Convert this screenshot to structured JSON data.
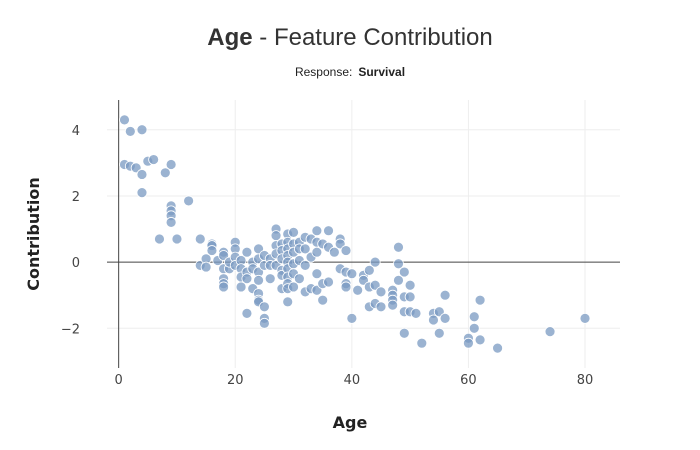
{
  "chart_data": {
    "type": "scatter",
    "title_bold": "Age",
    "title_rest": " - Feature Contribution",
    "subtitle_label": "Response:",
    "subtitle_value": "Survival",
    "xlabel": "Age",
    "ylabel": "Contribution",
    "xlim": [
      -2,
      86
    ],
    "ylim": [
      -3.2,
      4.9
    ],
    "x_ticks": [
      0,
      20,
      40,
      60,
      80
    ],
    "y_ticks": [
      -2,
      0,
      2,
      4
    ],
    "y_tick_labels": [
      "−2",
      "0",
      "2",
      "4"
    ],
    "grid": true,
    "color": "#7a99c2",
    "points": [
      [
        1,
        4.3
      ],
      [
        2,
        3.95
      ],
      [
        4,
        4.0
      ],
      [
        1,
        2.95
      ],
      [
        2,
        2.9
      ],
      [
        3,
        2.85
      ],
      [
        4,
        2.65
      ],
      [
        5,
        3.05
      ],
      [
        6,
        3.1
      ],
      [
        8,
        2.7
      ],
      [
        9,
        2.95
      ],
      [
        4,
        2.1
      ],
      [
        12,
        1.85
      ],
      [
        9,
        1.7
      ],
      [
        9,
        1.55
      ],
      [
        9,
        1.4
      ],
      [
        9,
        1.2
      ],
      [
        7,
        0.7
      ],
      [
        10,
        0.7
      ],
      [
        14,
        0.7
      ],
      [
        14,
        -0.1
      ],
      [
        15,
        0.1
      ],
      [
        15,
        -0.15
      ],
      [
        16,
        0.55
      ],
      [
        16,
        0.5
      ],
      [
        16,
        0.35
      ],
      [
        17,
        0.05
      ],
      [
        18,
        0.3
      ],
      [
        18,
        0.2
      ],
      [
        18,
        -0.2
      ],
      [
        18,
        -0.5
      ],
      [
        18,
        -0.65
      ],
      [
        18,
        -0.75
      ],
      [
        19,
        -0.2
      ],
      [
        19,
        0.0
      ],
      [
        20,
        0.6
      ],
      [
        20,
        0.4
      ],
      [
        20,
        0.15
      ],
      [
        20,
        -0.1
      ],
      [
        21,
        0.05
      ],
      [
        21,
        -0.2
      ],
      [
        21,
        -0.45
      ],
      [
        21,
        -0.75
      ],
      [
        22,
        0.3
      ],
      [
        22,
        -0.3
      ],
      [
        22,
        -0.5
      ],
      [
        22,
        -1.55
      ],
      [
        23,
        0.0
      ],
      [
        23,
        -0.2
      ],
      [
        23,
        -0.8
      ],
      [
        24,
        0.4
      ],
      [
        24,
        0.1
      ],
      [
        24,
        -0.3
      ],
      [
        24,
        -0.55
      ],
      [
        24,
        -0.95
      ],
      [
        24,
        -1.15
      ],
      [
        24,
        -1.2
      ],
      [
        25,
        0.2
      ],
      [
        25,
        -0.1
      ],
      [
        25,
        -1.35
      ],
      [
        25,
        -1.7
      ],
      [
        25,
        -1.85
      ],
      [
        26,
        0.1
      ],
      [
        26,
        -0.1
      ],
      [
        26,
        -0.5
      ],
      [
        27,
        1.0
      ],
      [
        27,
        0.8
      ],
      [
        27,
        0.5
      ],
      [
        27,
        0.25
      ],
      [
        27,
        -0.1
      ],
      [
        28,
        0.55
      ],
      [
        28,
        0.35
      ],
      [
        28,
        0.1
      ],
      [
        28,
        -0.25
      ],
      [
        28,
        -0.4
      ],
      [
        28,
        -0.8
      ],
      [
        29,
        0.85
      ],
      [
        29,
        0.6
      ],
      [
        29,
        0.4
      ],
      [
        29,
        0.2
      ],
      [
        29,
        0.0
      ],
      [
        29,
        -0.2
      ],
      [
        29,
        -0.45
      ],
      [
        29,
        -0.65
      ],
      [
        29,
        -0.8
      ],
      [
        29,
        -1.2
      ],
      [
        30,
        0.9
      ],
      [
        30,
        0.55
      ],
      [
        30,
        0.3
      ],
      [
        30,
        -0.05
      ],
      [
        30,
        -0.35
      ],
      [
        30,
        -0.75
      ],
      [
        31,
        0.6
      ],
      [
        31,
        0.4
      ],
      [
        31,
        0.05
      ],
      [
        31,
        -0.5
      ],
      [
        32,
        0.75
      ],
      [
        32,
        0.4
      ],
      [
        32,
        -0.1
      ],
      [
        32,
        -0.9
      ],
      [
        33,
        0.7
      ],
      [
        33,
        0.15
      ],
      [
        33,
        -0.8
      ],
      [
        34,
        0.95
      ],
      [
        34,
        0.6
      ],
      [
        34,
        0.3
      ],
      [
        34,
        -0.35
      ],
      [
        34,
        -0.85
      ],
      [
        35,
        0.55
      ],
      [
        35,
        -0.65
      ],
      [
        35,
        -1.15
      ],
      [
        36,
        0.95
      ],
      [
        36,
        0.45
      ],
      [
        36,
        -0.6
      ],
      [
        37,
        0.3
      ],
      [
        38,
        0.7
      ],
      [
        38,
        0.55
      ],
      [
        38,
        -0.2
      ],
      [
        39,
        0.35
      ],
      [
        39,
        -0.3
      ],
      [
        39,
        -0.65
      ],
      [
        39,
        -0.75
      ],
      [
        40,
        -0.35
      ],
      [
        40,
        -1.7
      ],
      [
        41,
        -0.85
      ],
      [
        42,
        -0.4
      ],
      [
        42,
        -0.55
      ],
      [
        43,
        -0.25
      ],
      [
        43,
        -0.75
      ],
      [
        43,
        -1.35
      ],
      [
        44,
        0.0
      ],
      [
        44,
        -0.7
      ],
      [
        44,
        -1.25
      ],
      [
        45,
        -0.9
      ],
      [
        45,
        -1.35
      ],
      [
        47,
        -0.85
      ],
      [
        47,
        -1.0
      ],
      [
        47,
        -1.15
      ],
      [
        47,
        -1.3
      ],
      [
        48,
        0.45
      ],
      [
        48,
        -0.05
      ],
      [
        48,
        -0.55
      ],
      [
        49,
        -0.3
      ],
      [
        49,
        -1.05
      ],
      [
        49,
        -1.5
      ],
      [
        49,
        -2.15
      ],
      [
        50,
        -0.7
      ],
      [
        50,
        -1.05
      ],
      [
        50,
        -1.5
      ],
      [
        51,
        -1.55
      ],
      [
        52,
        -2.45
      ],
      [
        54,
        -1.55
      ],
      [
        54,
        -1.75
      ],
      [
        55,
        -1.5
      ],
      [
        55,
        -2.15
      ],
      [
        56,
        -1.0
      ],
      [
        56,
        -1.7
      ],
      [
        60,
        -2.3
      ],
      [
        60,
        -2.45
      ],
      [
        61,
        -1.65
      ],
      [
        61,
        -2.0
      ],
      [
        62,
        -1.15
      ],
      [
        62,
        -2.35
      ],
      [
        65,
        -2.6
      ],
      [
        74,
        -2.1
      ],
      [
        80,
        -1.7
      ]
    ]
  }
}
